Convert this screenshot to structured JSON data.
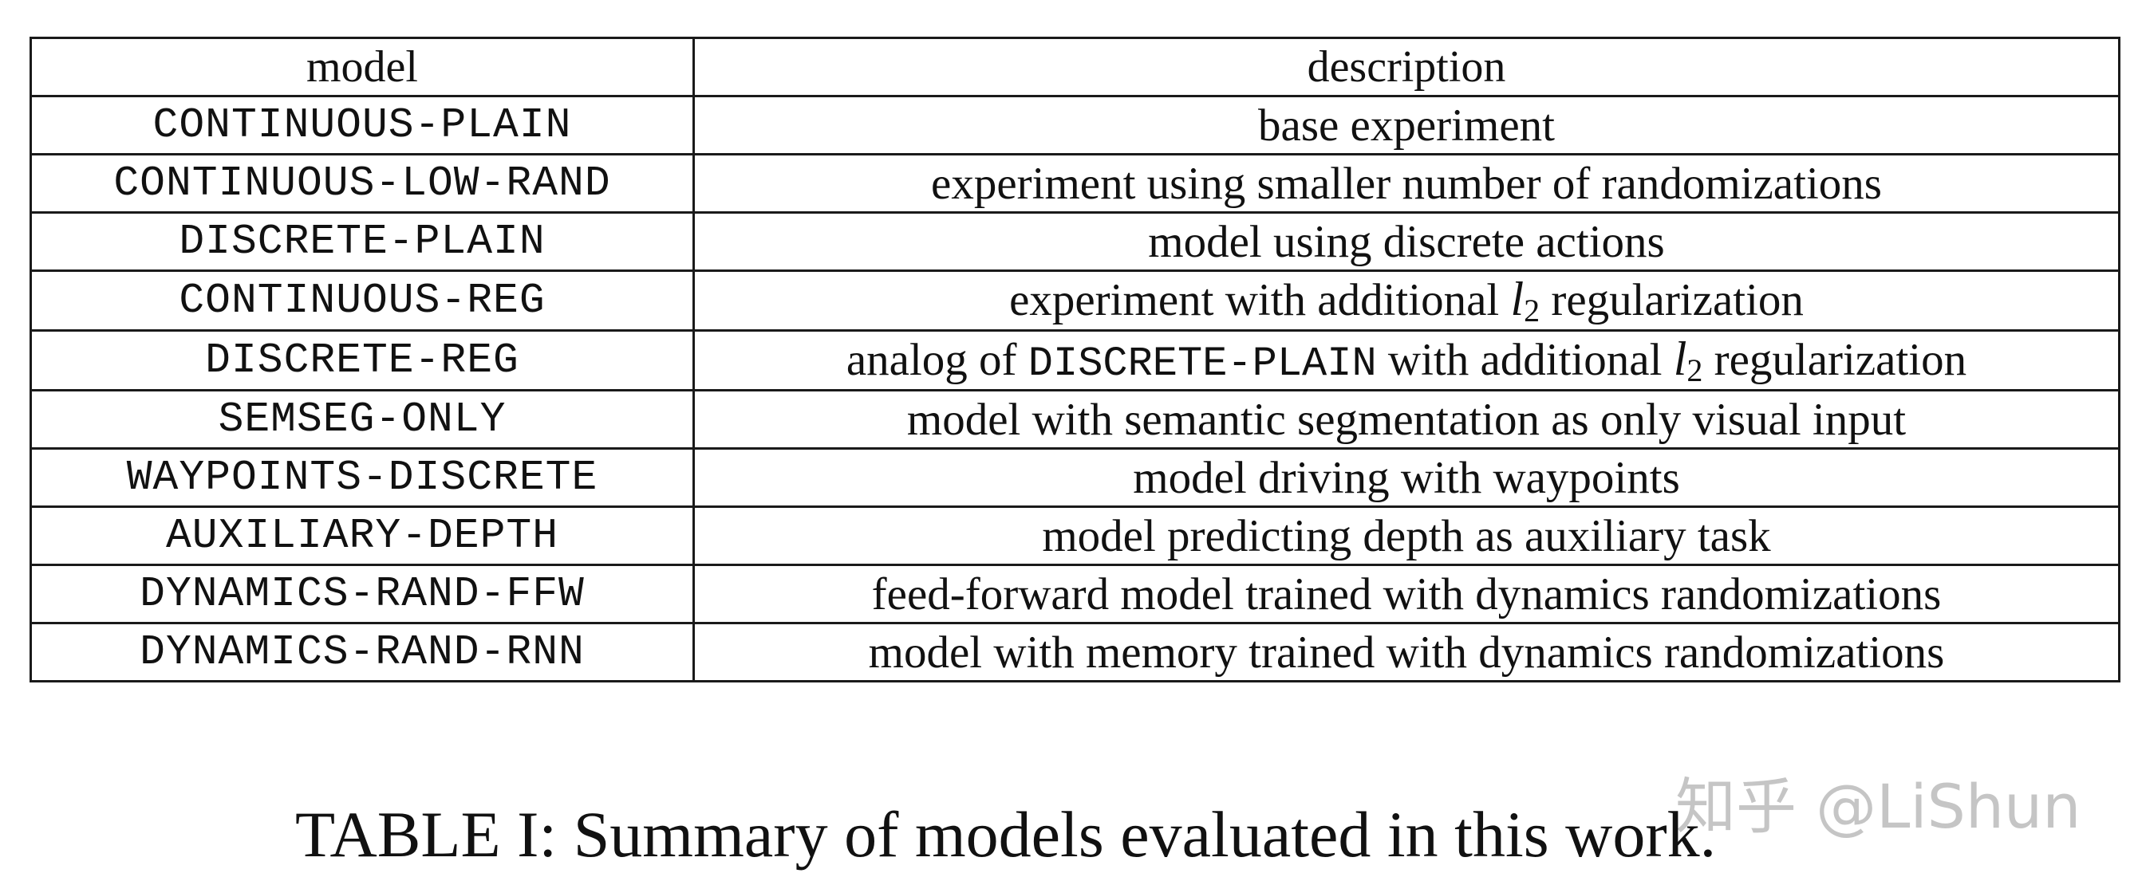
{
  "table": {
    "headers": {
      "model": "model",
      "description": "description"
    },
    "rows": [
      {
        "model": "CONTINUOUS-PLAIN",
        "description": "base experiment"
      },
      {
        "model": "CONTINUOUS-LOW-RAND",
        "description": "experiment using smaller number of randomizations"
      },
      {
        "model": "DISCRETE-PLAIN",
        "description": "model using discrete actions"
      },
      {
        "model": "CONTINUOUS-REG",
        "description_before": "experiment with additional",
        "math_symbol": "l",
        "math_subscript": "2",
        "description_after": "regularization"
      },
      {
        "model": "DISCRETE-REG",
        "description_before": "analog of",
        "description_mono": "DISCRETE-PLAIN",
        "description_mid": "with additional",
        "math_symbol": "l",
        "math_subscript": "2",
        "description_after": "regularization"
      },
      {
        "model": "SEMSEG-ONLY",
        "description": "model with semantic segmentation as only visual input"
      },
      {
        "model": "WAYPOINTS-DISCRETE",
        "description": "model driving with waypoints"
      },
      {
        "model": "AUXILIARY-DEPTH",
        "description": "model predicting depth as auxiliary task"
      },
      {
        "model": "DYNAMICS-RAND-FFW",
        "description": "feed-forward model trained with dynamics randomizations"
      },
      {
        "model": "DYNAMICS-RAND-RNN",
        "description": "model with memory trained with dynamics randomizations"
      }
    ]
  },
  "caption": "TABLE I: Summary of models evaluated in this work.",
  "watermark": "知乎 @LiShun"
}
